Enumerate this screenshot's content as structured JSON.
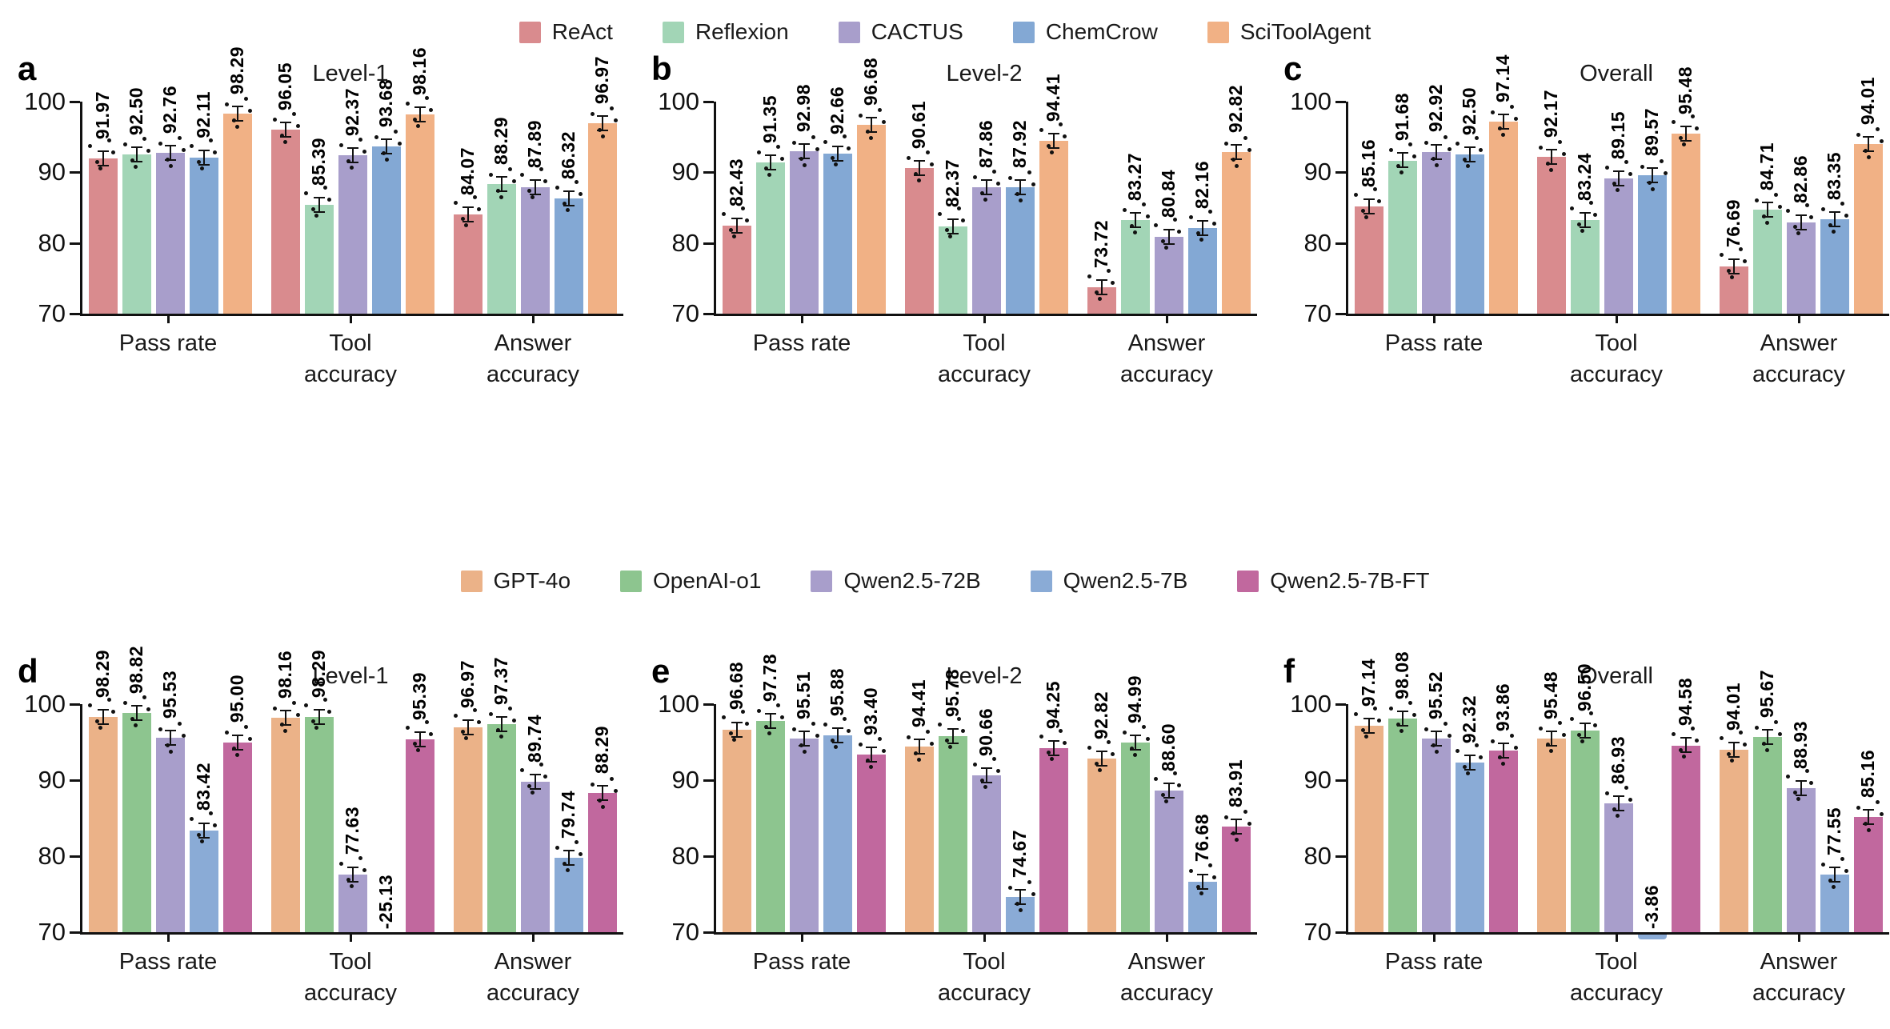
{
  "figure": {
    "background": "#ffffff",
    "axis_color": "#111111",
    "group_label_lines": [
      [
        "Pass rate"
      ],
      [
        "Tool",
        "accuracy"
      ],
      [
        "Answer",
        "accuracy"
      ]
    ]
  },
  "legends": [
    {
      "name": "agents",
      "entries": [
        {
          "label": "ReAct",
          "color": "#d98b8e"
        },
        {
          "label": "Reflexion",
          "color": "#a2d5b6"
        },
        {
          "label": "CACTUS",
          "color": "#a89ecb"
        },
        {
          "label": "ChemCrow",
          "color": "#83a8d4"
        },
        {
          "label": "SciToolAgent",
          "color": "#f1b185"
        }
      ]
    },
    {
      "name": "models",
      "entries": [
        {
          "label": "GPT-4o",
          "color": "#ebb288"
        },
        {
          "label": "OpenAI-o1",
          "color": "#8dc58f"
        },
        {
          "label": "Qwen2.5-72B",
          "color": "#a89ecb"
        },
        {
          "label": "Qwen2.5-7B",
          "color": "#8aabd6"
        },
        {
          "label": "Qwen2.5-7B-FT",
          "color": "#c1689e"
        }
      ]
    }
  ],
  "chart_data": [
    {
      "type": "bar",
      "letter": "a",
      "title": "Level-1",
      "legend": "agents",
      "categories": [
        "Pass rate",
        "Tool accuracy",
        "Answer accuracy"
      ],
      "ylim": [
        70,
        100
      ],
      "yticks": [
        100,
        90,
        80,
        70
      ],
      "grid": false,
      "series": [
        {
          "name": "ReAct",
          "values": [
            91.97,
            96.05,
            84.07
          ]
        },
        {
          "name": "Reflexion",
          "values": [
            92.5,
            85.39,
            88.29
          ]
        },
        {
          "name": "CACTUS",
          "values": [
            92.76,
            92.37,
            87.89
          ]
        },
        {
          "name": "ChemCrow",
          "values": [
            92.11,
            93.68,
            86.32
          ]
        },
        {
          "name": "SciToolAgent",
          "values": [
            98.29,
            98.16,
            96.97
          ]
        }
      ]
    },
    {
      "type": "bar",
      "letter": "b",
      "title": "Level-2",
      "legend": "agents",
      "categories": [
        "Pass rate",
        "Tool accuracy",
        "Answer accuracy"
      ],
      "ylim": [
        70,
        100
      ],
      "yticks": [
        100,
        90,
        80,
        70
      ],
      "grid": false,
      "series": [
        {
          "name": "ReAct",
          "values": [
            82.43,
            90.61,
            73.72
          ]
        },
        {
          "name": "Reflexion",
          "values": [
            91.35,
            82.37,
            83.27
          ]
        },
        {
          "name": "CACTUS",
          "values": [
            92.98,
            87.86,
            80.84
          ]
        },
        {
          "name": "ChemCrow",
          "values": [
            92.66,
            87.92,
            82.16
          ]
        },
        {
          "name": "SciToolAgent",
          "values": [
            96.68,
            94.41,
            92.82
          ]
        }
      ]
    },
    {
      "type": "bar",
      "letter": "c",
      "title": "Overall",
      "legend": "agents",
      "categories": [
        "Pass rate",
        "Tool accuracy",
        "Answer accuracy"
      ],
      "ylim": [
        70,
        100
      ],
      "yticks": [
        100,
        90,
        80,
        70
      ],
      "grid": false,
      "series": [
        {
          "name": "ReAct",
          "values": [
            85.16,
            92.17,
            76.69
          ]
        },
        {
          "name": "Reflexion",
          "values": [
            91.68,
            83.24,
            84.71
          ]
        },
        {
          "name": "CACTUS",
          "values": [
            92.92,
            89.15,
            82.86
          ]
        },
        {
          "name": "ChemCrow",
          "values": [
            92.5,
            89.57,
            83.35
          ]
        },
        {
          "name": "SciToolAgent",
          "values": [
            97.14,
            95.48,
            94.01
          ]
        }
      ]
    },
    {
      "type": "bar",
      "letter": "d",
      "title": "Level-1",
      "legend": "models",
      "categories": [
        "Pass rate",
        "Tool accuracy",
        "Answer accuracy"
      ],
      "ylim": [
        70,
        100
      ],
      "yticks": [
        100,
        90,
        80,
        70
      ],
      "grid": false,
      "series": [
        {
          "name": "GPT-4o",
          "values": [
            98.29,
            98.16,
            96.97
          ]
        },
        {
          "name": "OpenAI-o1",
          "values": [
            98.82,
            98.29,
            97.37
          ]
        },
        {
          "name": "Qwen2.5-72B",
          "values": [
            95.53,
            77.63,
            89.74
          ]
        },
        {
          "name": "Qwen2.5-7B",
          "values": [
            83.42,
            -25.13,
            79.74
          ]
        },
        {
          "name": "Qwen2.5-7B-FT",
          "values": [
            95.0,
            95.39,
            88.29
          ]
        }
      ]
    },
    {
      "type": "bar",
      "letter": "e",
      "title": "Level-2",
      "legend": "models",
      "categories": [
        "Pass rate",
        "Tool accuracy",
        "Answer accuracy"
      ],
      "ylim": [
        70,
        100
      ],
      "yticks": [
        100,
        90,
        80,
        70
      ],
      "grid": false,
      "series": [
        {
          "name": "GPT-4o",
          "values": [
            96.68,
            94.41,
            92.82
          ]
        },
        {
          "name": "OpenAI-o1",
          "values": [
            97.78,
            95.78,
            94.99
          ]
        },
        {
          "name": "Qwen2.5-72B",
          "values": [
            95.51,
            90.66,
            88.6
          ]
        },
        {
          "name": "Qwen2.5-7B",
          "values": [
            95.88,
            74.67,
            76.68
          ]
        },
        {
          "name": "Qwen2.5-7B-FT",
          "values": [
            93.4,
            94.25,
            83.91
          ]
        }
      ]
    },
    {
      "type": "bar",
      "letter": "f",
      "title": "Overall",
      "legend": "models",
      "categories": [
        "Pass rate",
        "Tool accuracy",
        "Answer accuracy"
      ],
      "ylim": [
        70,
        100
      ],
      "yticks": [
        100,
        90,
        80,
        70
      ],
      "grid": false,
      "series": [
        {
          "name": "GPT-4o",
          "values": [
            97.14,
            95.48,
            94.01
          ]
        },
        {
          "name": "OpenAI-o1",
          "values": [
            98.08,
            96.5,
            95.67
          ]
        },
        {
          "name": "Qwen2.5-72B",
          "values": [
            95.52,
            86.93,
            88.93
          ]
        },
        {
          "name": "Qwen2.5-7B",
          "values": [
            92.32,
            -3.86,
            77.55
          ]
        },
        {
          "name": "Qwen2.5-7B-FT",
          "values": [
            93.86,
            94.58,
            85.16
          ]
        }
      ]
    }
  ]
}
